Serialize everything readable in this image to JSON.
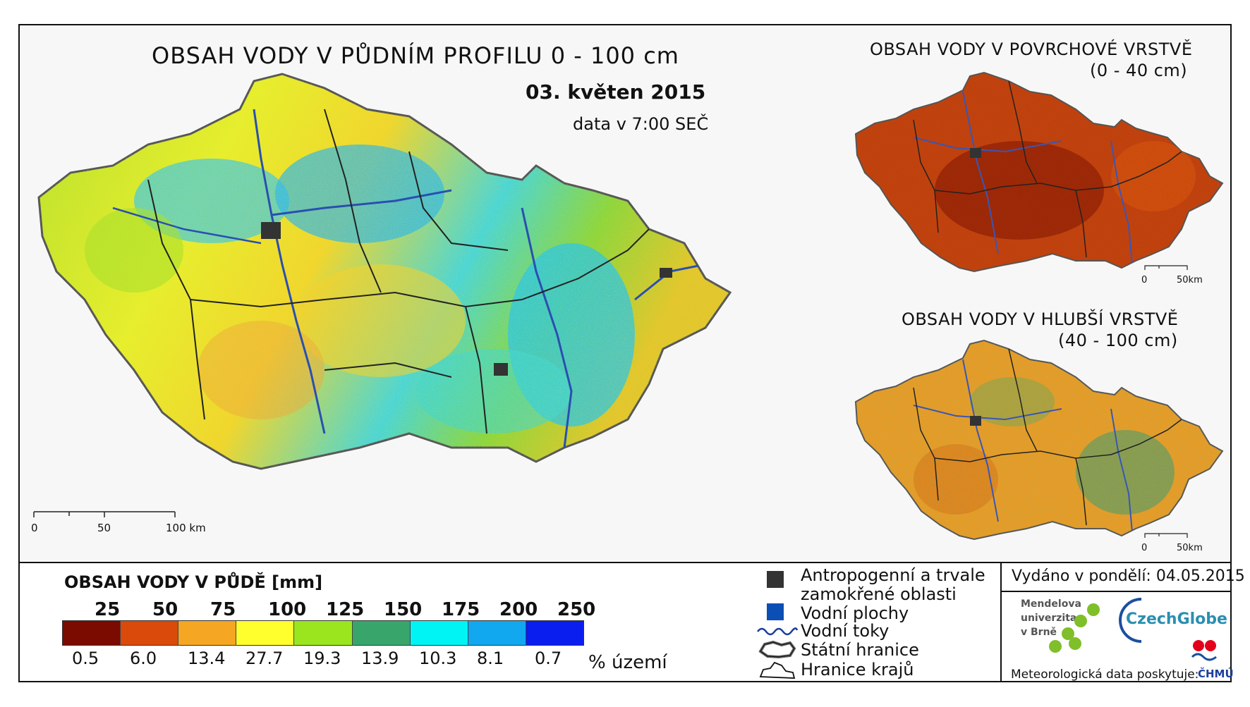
{
  "main": {
    "title": "OBSAH VODY V PŮDNÍM PROFILU 0 - 100 cm",
    "date": "03. květen 2015",
    "time_note": "data v 7:00 SEČ",
    "scale": {
      "ticks": [
        "0",
        "50",
        "100 km"
      ]
    }
  },
  "surface": {
    "title": "OBSAH VODY V POVRCHOVÉ VRSTVĚ",
    "subtitle": "(0 - 40 cm)",
    "scale": {
      "ticks": [
        "0",
        "50km"
      ]
    }
  },
  "deep": {
    "title": "OBSAH VODY V HLUBŠÍ VRSTVĚ",
    "subtitle": "(40 - 100 cm)",
    "scale": {
      "ticks": [
        "0",
        "50km"
      ]
    }
  },
  "legend": {
    "title": "OBSAH VODY V PŮDĚ [mm]",
    "class_limits": [
      "25",
      "50",
      "75",
      "100",
      "125",
      "150",
      "175",
      "200",
      "250"
    ],
    "colors": [
      "#7b0a00",
      "#d94a0b",
      "#f5a623",
      "#ffff2e",
      "#9be51f",
      "#38a66b",
      "#00f4f4",
      "#12a8ef",
      "#0a1eef"
    ],
    "percent_values": [
      "0.5",
      "6.0",
      "13.4",
      "27.7",
      "19.3",
      "13.9",
      "10.3",
      "8.1",
      "0.7"
    ],
    "percent_unit": "% území",
    "symbols": [
      {
        "icon": "anthropogenic-square-icon",
        "label": "Antropogenní a trvale",
        "label2": "zamokřené oblasti",
        "color": "#333333"
      },
      {
        "icon": "water-square-icon",
        "label": "Vodní plochy",
        "color": "#0b4fb4"
      },
      {
        "icon": "river-line-icon",
        "label": "Vodní toky",
        "color": "#1b3f9e"
      },
      {
        "icon": "state-border-icon",
        "label": "Státní hranice"
      },
      {
        "icon": "region-border-icon",
        "label": "Hranice krajů"
      }
    ]
  },
  "issue": {
    "issued_text": "Vydáno v pondělí: 04.05.2015",
    "mendel_line1": "Mendelova",
    "mendel_line2": "univerzita",
    "mendel_line3": "v Brně",
    "czechglobe": "CzechGlobe",
    "met_data": "Meteorologická data poskytuje:",
    "chmu": "ČHMÚ"
  }
}
